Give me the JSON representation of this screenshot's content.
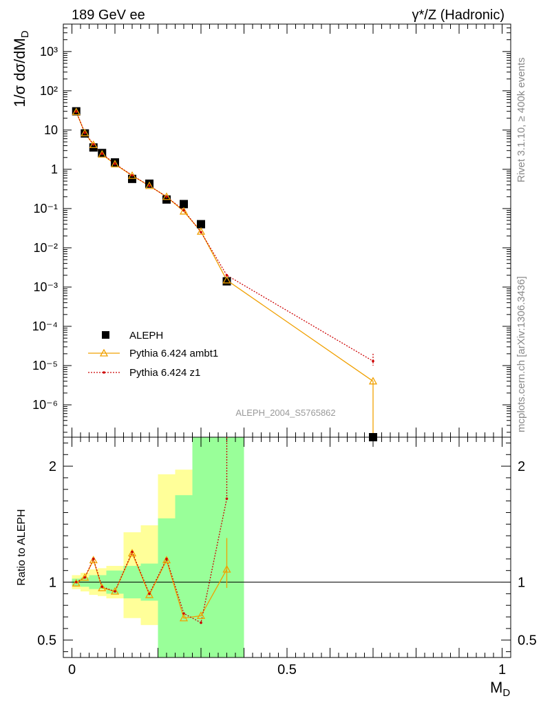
{
  "header": {
    "left": "189 GeV ee",
    "right": "γ*/Z (Hadronic)"
  },
  "side_labels": {
    "upper": "Rivet 3.1.10, ≥ 400k events",
    "lower": "mcplots.cern.ch [arXiv:1306.3436]"
  },
  "watermark": "ALEPH_2004_S5765862",
  "chart_data": [
    {
      "type": "scatter",
      "title": "",
      "ylabel": "1/σ  dσ/dM_D",
      "xlabel": "M_D",
      "xlim": [
        -0.02,
        1.02
      ],
      "ylim": [
        1.5e-07,
        5000
      ],
      "yscale": "log",
      "ytick_labels": [
        "10^-6",
        "10^-5",
        "10^-4",
        "10^-3",
        "10^-2",
        "10^-1",
        "1",
        "10",
        "10^2",
        "10^3"
      ],
      "legend_position": "bottom-left",
      "series": [
        {
          "name": "ALEPH",
          "color": "#000000",
          "marker": "square",
          "x": [
            0.01,
            0.03,
            0.05,
            0.07,
            0.1,
            0.14,
            0.18,
            0.22,
            0.26,
            0.3,
            0.36,
            0.7
          ],
          "values": [
            30,
            8.2,
            3.6,
            2.6,
            1.5,
            0.57,
            0.43,
            0.17,
            0.13,
            0.04,
            0.0014,
            1.5e-07
          ]
        },
        {
          "name": "Pythia 6.424 ambt1",
          "color": "#f0a000",
          "marker": "triangle",
          "line": "solid",
          "x": [
            0.01,
            0.03,
            0.05,
            0.07,
            0.1,
            0.14,
            0.18,
            0.22,
            0.26,
            0.3,
            0.36,
            0.7
          ],
          "values": [
            29,
            8.4,
            4.2,
            2.4,
            1.35,
            0.69,
            0.38,
            0.2,
            0.085,
            0.026,
            0.0015,
            4e-06
          ]
        },
        {
          "name": "Pythia 6.424 z1",
          "color": "#cc0000",
          "marker": "dot",
          "line": "dotted",
          "x": [
            0.01,
            0.03,
            0.05,
            0.07,
            0.1,
            0.14,
            0.18,
            0.22,
            0.26,
            0.3,
            0.36,
            0.7
          ],
          "values": [
            29.5,
            8.5,
            4.3,
            2.5,
            1.38,
            0.7,
            0.38,
            0.2,
            0.09,
            0.025,
            0.002,
            1.3e-05
          ]
        }
      ]
    },
    {
      "type": "line",
      "title": "",
      "ylabel": "Ratio to ALEPH",
      "xlabel": "M_D",
      "xlim": [
        -0.02,
        1.02
      ],
      "ylim": [
        0.35,
        2.25
      ],
      "yticks": [
        0.5,
        1,
        2
      ],
      "ytick_labels": [
        "0.5",
        "1",
        "2"
      ],
      "xticks": [
        0,
        0.5,
        1
      ],
      "xtick_labels": [
        "0",
        "0.5",
        "1"
      ],
      "reference_line": 1,
      "bands": {
        "x_edges": [
          0.0,
          0.02,
          0.04,
          0.06,
          0.08,
          0.12,
          0.16,
          0.2,
          0.24,
          0.28,
          0.32,
          0.4
        ],
        "green_low": [
          0.97,
          0.96,
          0.94,
          0.94,
          0.9,
          0.86,
          0.84,
          0.35,
          0.35,
          0.35,
          0.35
        ],
        "green_high": [
          1.03,
          1.04,
          1.06,
          1.06,
          1.1,
          1.14,
          1.16,
          1.55,
          1.75,
          2.25,
          2.25
        ],
        "yellow_low": [
          0.94,
          0.92,
          0.89,
          0.88,
          0.86,
          0.69,
          0.63,
          0.57,
          0.57,
          0.35,
          0.35
        ],
        "yellow_high": [
          1.06,
          1.08,
          1.11,
          1.12,
          1.14,
          1.43,
          1.49,
          1.93,
          1.97,
          2.25,
          2.25
        ]
      },
      "series": [
        {
          "name": "Pythia 6.424 ambt1",
          "color": "#f0a000",
          "marker": "triangle",
          "line": "solid",
          "x": [
            0.01,
            0.03,
            0.05,
            0.07,
            0.1,
            0.14,
            0.18,
            0.22,
            0.26,
            0.3,
            0.36
          ],
          "values": [
            0.99,
            1.04,
            1.19,
            0.95,
            0.92,
            1.25,
            0.89,
            1.19,
            0.69,
            0.71,
            1.11
          ],
          "error_last": [
            0.95,
            1.38
          ]
        },
        {
          "name": "Pythia 6.424 z1",
          "color": "#cc0000",
          "marker": "dot",
          "line": "dotted",
          "x": [
            0.01,
            0.03,
            0.05,
            0.07,
            0.1,
            0.14,
            0.18,
            0.22,
            0.26,
            0.3,
            0.36
          ],
          "values": [
            1.0,
            1.04,
            1.2,
            0.96,
            0.92,
            1.26,
            0.9,
            1.2,
            0.73,
            0.65,
            1.72
          ]
        }
      ]
    }
  ]
}
